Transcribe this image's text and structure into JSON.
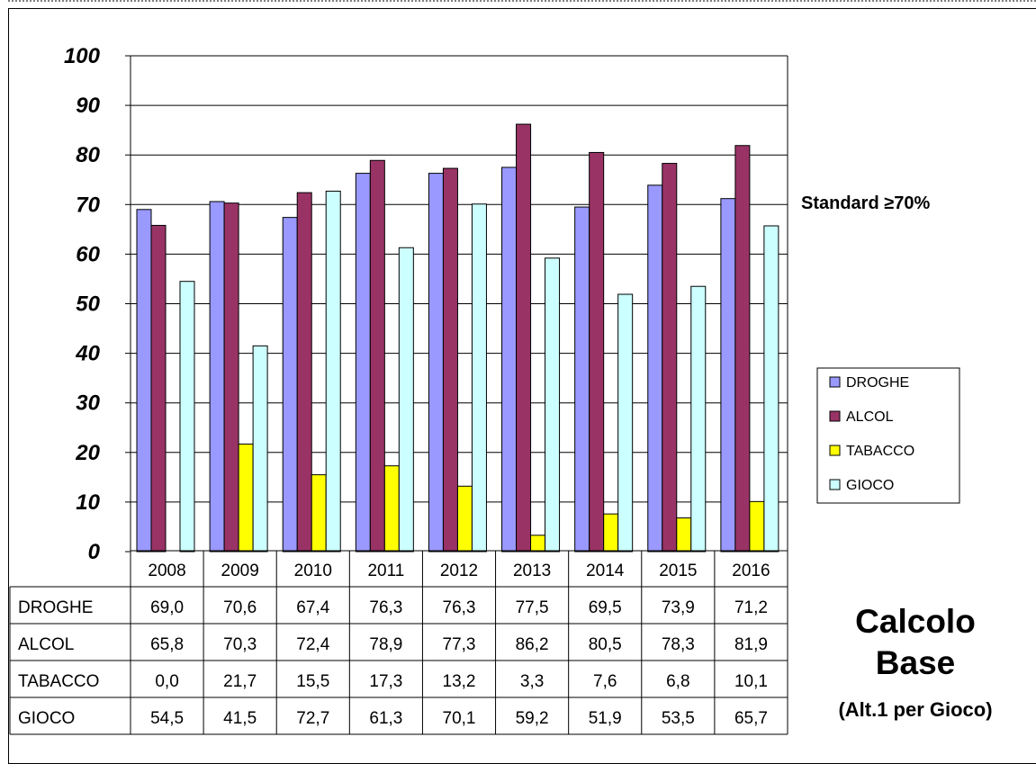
{
  "chart_data": {
    "type": "bar",
    "categories": [
      "2008",
      "2009",
      "2010",
      "2011",
      "2012",
      "2013",
      "2014",
      "2015",
      "2016"
    ],
    "series": [
      {
        "name": "DROGHE",
        "color": "#9999ff",
        "values": [
          69.0,
          70.6,
          67.4,
          76.3,
          76.3,
          77.5,
          69.5,
          73.9,
          71.2
        ],
        "labels": [
          "69,0",
          "70,6",
          "67,4",
          "76,3",
          "76,3",
          "77,5",
          "69,5",
          "73,9",
          "71,2"
        ]
      },
      {
        "name": "ALCOL",
        "color": "#993366",
        "values": [
          65.8,
          70.3,
          72.4,
          78.9,
          77.3,
          86.2,
          80.5,
          78.3,
          81.9
        ],
        "labels": [
          "65,8",
          "70,3",
          "72,4",
          "78,9",
          "77,3",
          "86,2",
          "80,5",
          "78,3",
          "81,9"
        ]
      },
      {
        "name": "TABACCO",
        "color": "#ffff00",
        "values": [
          0.0,
          21.7,
          15.5,
          17.3,
          13.2,
          3.3,
          7.6,
          6.8,
          10.1
        ],
        "labels": [
          "0,0",
          "21,7",
          "15,5",
          "17,3",
          "13,2",
          "3,3",
          "7,6",
          "6,8",
          "10,1"
        ]
      },
      {
        "name": "GIOCO",
        "color": "#ccffff",
        "values": [
          54.5,
          41.5,
          72.7,
          61.3,
          70.1,
          59.2,
          51.9,
          53.5,
          65.7
        ],
        "labels": [
          "54,5",
          "41,5",
          "72,7",
          "61,3",
          "70,1",
          "59,2",
          "51,9",
          "53,5",
          "65,7"
        ]
      }
    ],
    "ylim": [
      0,
      100
    ],
    "yticks": [
      "0",
      "10",
      "20",
      "30",
      "40",
      "50",
      "60",
      "70",
      "80",
      "90",
      "100"
    ],
    "grid": true,
    "legend": "right",
    "data_table": true
  },
  "annotations": {
    "standard": "Standard ≥70%",
    "title_line1": "Calcolo",
    "title_line2": "Base",
    "subtitle": "(Alt.1 per Gioco)"
  }
}
